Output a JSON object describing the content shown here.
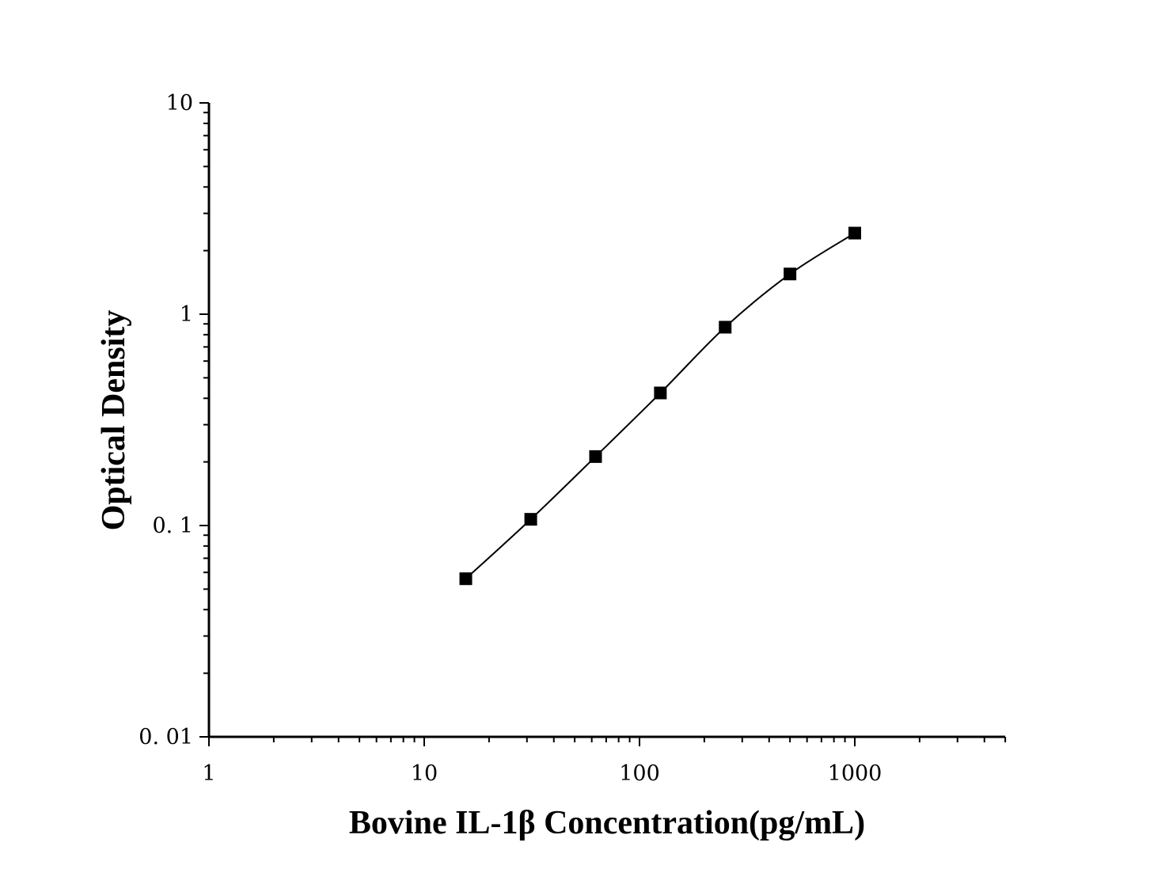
{
  "chart_data": {
    "type": "scatter",
    "xlabel": "Bovine IL-1β Concentration(pg/mL)",
    "ylabel": "Optical Density",
    "xscale": "log",
    "yscale": "log",
    "xlim": [
      1,
      5000
    ],
    "ylim": [
      0.01,
      10
    ],
    "xticks": [
      {
        "value": 1,
        "label": "1"
      },
      {
        "value": 10,
        "label": "10"
      },
      {
        "value": 100,
        "label": "100"
      },
      {
        "value": 1000,
        "label": "1000"
      }
    ],
    "yticks": [
      {
        "value": 0.01,
        "label": "0. 01"
      },
      {
        "value": 0.1,
        "label": "0. 1"
      },
      {
        "value": 1,
        "label": "1"
      },
      {
        "value": 10,
        "label": "10"
      }
    ],
    "grid": false,
    "legend": "none",
    "color": "#000000",
    "marker": "square",
    "fit_line": true,
    "series": [
      {
        "x": [
          15.6,
          31.25,
          62.5,
          125,
          250,
          500,
          1000
        ],
        "y": [
          0.056,
          0.107,
          0.212,
          0.424,
          0.868,
          1.55,
          2.42
        ]
      }
    ]
  }
}
